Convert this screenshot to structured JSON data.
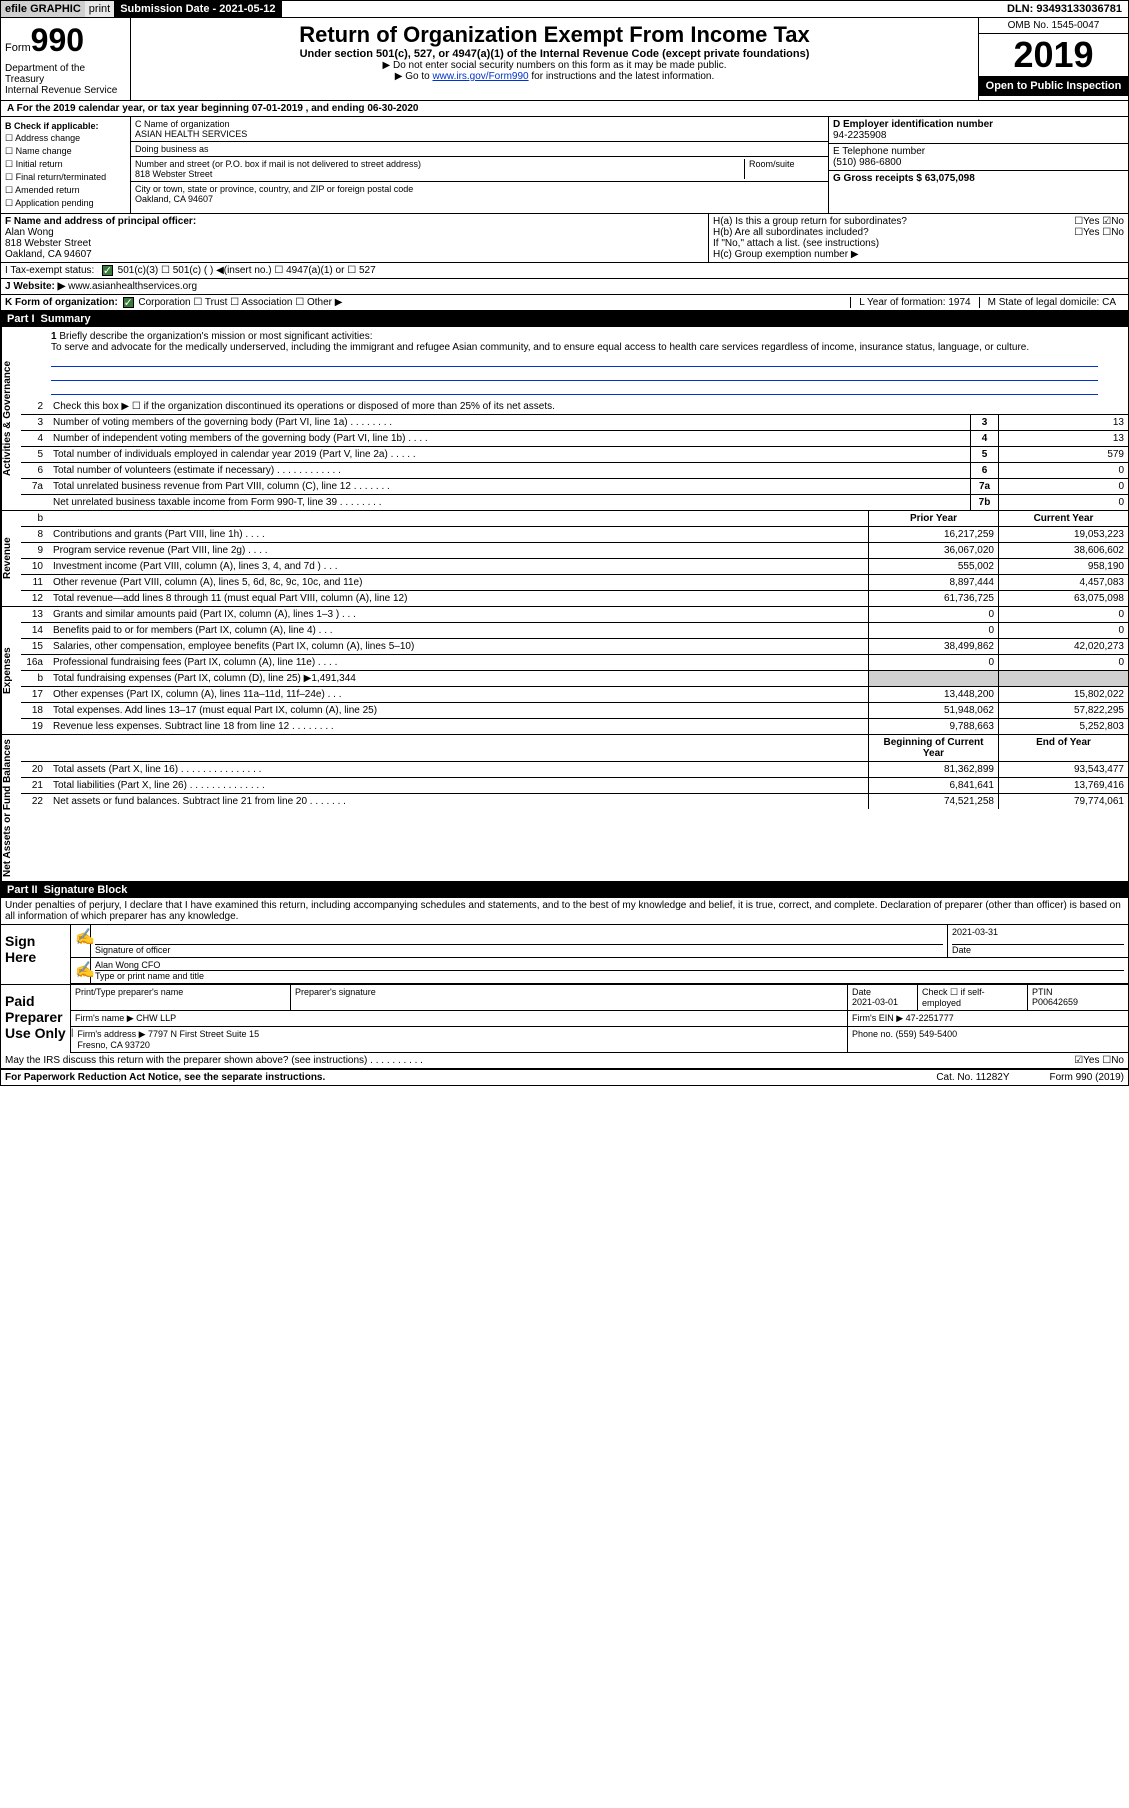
{
  "topbar": {
    "efile_bold": "efile GRAPHIC",
    "efile_print": "print",
    "submission_label": "Submission Date - 2021-05-12",
    "dln": "DLN: 93493133036781"
  },
  "header": {
    "form_word": "Form",
    "form_number": "990",
    "dept": "Department of the Treasury\nInternal Revenue Service",
    "main_title": "Return of Organization Exempt From Income Tax",
    "sub1": "Under section 501(c), 527, or 4947(a)(1) of the Internal Revenue Code (except private foundations)",
    "sub2": "▶ Do not enter social security numbers on this form as it may be made public.",
    "sub3_pre": "▶ Go to ",
    "sub3_link": "www.irs.gov/Form990",
    "sub3_post": " for instructions and the latest information.",
    "omb": "OMB No. 1545-0047",
    "year": "2019",
    "open": "Open to Public Inspection"
  },
  "line_a": "A For the 2019 calendar year, or tax year beginning 07-01-2019   , and ending 06-30-2020",
  "section_b": {
    "b_title": "B Check if applicable:",
    "b_items": [
      "☐ Address change",
      "☐ Name change",
      "☐ Initial return",
      "☐ Final return/terminated",
      "☐ Amended return",
      "☐ Application pending"
    ],
    "c_name_label": "C Name of organization",
    "c_name": "ASIAN HEALTH SERVICES",
    "dba_label": "Doing business as",
    "addr_label": "Number and street (or P.O. box if mail is not delivered to street address)",
    "room_label": "Room/suite",
    "addr": "818 Webster Street",
    "city_label": "City or town, state or province, country, and ZIP or foreign postal code",
    "city": "Oakland, CA  94607",
    "d_label": "D Employer identification number",
    "d_val": "94-2235908",
    "e_label": "E Telephone number",
    "e_val": "(510) 986-6800",
    "g_label": "G Gross receipts $ 63,075,098"
  },
  "section_fh": {
    "f_label": "F Name and address of principal officer:",
    "f_name": "Alan Wong",
    "f_addr1": "818 Webster Street",
    "f_addr2": "Oakland, CA  94607",
    "ha": "H(a)  Is this a group return for subordinates?",
    "ha_yn": "☐Yes ☑No",
    "hb": "H(b)  Are all subordinates included?",
    "hb_yn": "☐Yes ☐No",
    "hb_note": "If \"No,\" attach a list. (see instructions)",
    "hc": "H(c)  Group exemption number ▶"
  },
  "row_i": {
    "label": "I Tax-exempt status:",
    "opts": "501(c)(3)   ☐ 501(c) (  ) ◀(insert no.)   ☐ 4947(a)(1) or   ☐ 527"
  },
  "row_j": {
    "label": "J Website: ▶",
    "val": "www.asianhealthservices.org"
  },
  "row_k": {
    "label": "K Form of organization:",
    "opts": "Corporation  ☐ Trust  ☐ Association  ☐ Other ▶",
    "l": "L Year of formation: 1974",
    "m": "M State of legal domicile: CA"
  },
  "part1": {
    "label": "Part I",
    "title": "Summary"
  },
  "mission": {
    "num": "1",
    "label": "Briefly describe the organization's mission or most significant activities:",
    "text": "To serve and advocate for the medically underserved, including the immigrant and refugee Asian community, and to ensure equal access to health care services regardless of income, insurance status, language, or culture."
  },
  "line2": "Check this box ▶ ☐ if the organization discontinued its operations or disposed of more than 25% of its net assets.",
  "gov_lines": [
    {
      "n": "3",
      "d": "Number of voting members of the governing body (Part VI, line 1a)  .   .   .   .   .   .   .   .",
      "b": "3",
      "v": "13"
    },
    {
      "n": "4",
      "d": "Number of independent voting members of the governing body (Part VI, line 1b)  .   .   .   .",
      "b": "4",
      "v": "13"
    },
    {
      "n": "5",
      "d": "Total number of individuals employed in calendar year 2019 (Part V, line 2a)  .   .   .   .   .",
      "b": "5",
      "v": "579"
    },
    {
      "n": "6",
      "d": "Total number of volunteers (estimate if necessary)  .   .   .   .   .   .   .   .   .   .   .   .",
      "b": "6",
      "v": "0"
    },
    {
      "n": "7a",
      "d": "Total unrelated business revenue from Part VIII, column (C), line 12  .   .   .   .   .   .   .",
      "b": "7a",
      "v": "0"
    },
    {
      "n": "",
      "d": "Net unrelated business taxable income from Form 990-T, line 39  .   .   .   .   .   .   .   .",
      "b": "7b",
      "v": "0"
    }
  ],
  "rev_head": {
    "py": "Prior Year",
    "cy": "Current Year"
  },
  "rev_lines": [
    {
      "n": "8",
      "d": "Contributions and grants (Part VIII, line 1h)  .   .   .   .",
      "py": "16,217,259",
      "cy": "19,053,223"
    },
    {
      "n": "9",
      "d": "Program service revenue (Part VIII, line 2g)  .   .   .   .",
      "py": "36,067,020",
      "cy": "38,606,602"
    },
    {
      "n": "10",
      "d": "Investment income (Part VIII, column (A), lines 3, 4, and 7d )  .   .   .",
      "py": "555,002",
      "cy": "958,190"
    },
    {
      "n": "11",
      "d": "Other revenue (Part VIII, column (A), lines 5, 6d, 8c, 9c, 10c, and 11e)",
      "py": "8,897,444",
      "cy": "4,457,083"
    },
    {
      "n": "12",
      "d": "Total revenue—add lines 8 through 11 (must equal Part VIII, column (A), line 12)",
      "py": "61,736,725",
      "cy": "63,075,098"
    }
  ],
  "exp_lines": [
    {
      "n": "13",
      "d": "Grants and similar amounts paid (Part IX, column (A), lines 1–3 )  .   .   .",
      "py": "0",
      "cy": "0"
    },
    {
      "n": "14",
      "d": "Benefits paid to or for members (Part IX, column (A), line 4)  .   .   .",
      "py": "0",
      "cy": "0"
    },
    {
      "n": "15",
      "d": "Salaries, other compensation, employee benefits (Part IX, column (A), lines 5–10)",
      "py": "38,499,862",
      "cy": "42,020,273"
    },
    {
      "n": "16a",
      "d": "Professional fundraising fees (Part IX, column (A), line 11e)  .   .   .   .",
      "py": "0",
      "cy": "0"
    },
    {
      "n": "b",
      "d": "Total fundraising expenses (Part IX, column (D), line 25) ▶1,491,344",
      "py": "",
      "cy": "",
      "shade": true
    },
    {
      "n": "17",
      "d": "Other expenses (Part IX, column (A), lines 11a–11d, 11f–24e)  .   .   .",
      "py": "13,448,200",
      "cy": "15,802,022"
    },
    {
      "n": "18",
      "d": "Total expenses. Add lines 13–17 (must equal Part IX, column (A), line 25)",
      "py": "51,948,062",
      "cy": "57,822,295"
    },
    {
      "n": "19",
      "d": "Revenue less expenses. Subtract line 18 from line 12  .   .   .   .   .   .   .   .",
      "py": "9,788,663",
      "cy": "5,252,803"
    }
  ],
  "na_head": {
    "py": "Beginning of Current Year",
    "cy": "End of Year"
  },
  "na_lines": [
    {
      "n": "20",
      "d": "Total assets (Part X, line 16)  .   .   .   .   .   .   .   .   .   .   .   .   .   .   .",
      "py": "81,362,899",
      "cy": "93,543,477"
    },
    {
      "n": "21",
      "d": "Total liabilities (Part X, line 26)  .   .   .   .   .   .   .   .   .   .   .   .   .   .",
      "py": "6,841,641",
      "cy": "13,769,416"
    },
    {
      "n": "22",
      "d": "Net assets or fund balances. Subtract line 21 from line 20  .   .   .   .   .   .   .",
      "py": "74,521,258",
      "cy": "79,774,061"
    }
  ],
  "part2": {
    "label": "Part II",
    "title": "Signature Block"
  },
  "perjury": "Under penalties of perjury, I declare that I have examined this return, including accompanying schedules and statements, and to the best of my knowledge and belief, it is true, correct, and complete. Declaration of preparer (other than officer) is based on all information of which preparer has any knowledge.",
  "sign": {
    "left": "Sign Here",
    "sig_date": "2021-03-31",
    "sig_of": "Signature of officer",
    "sig_date_lbl": "Date",
    "name_title": "Alan Wong CFO",
    "name_title_lbl": "Type or print name and title"
  },
  "paid": {
    "left": "Paid Preparer Use Only",
    "pt_name": "Print/Type preparer's name",
    "pt_sig": "Preparer's signature",
    "pt_date_lbl": "Date",
    "pt_date": "2021-03-01",
    "check_lbl": "Check ☐ if self-employed",
    "ptin_lbl": "PTIN",
    "ptin": "P00642659",
    "firm_name_lbl": "Firm's name   ▶",
    "firm_name": "CHW LLP",
    "firm_ein_lbl": "Firm's EIN ▶",
    "firm_ein": "47-2251777",
    "firm_addr_lbl": "Firm's address ▶",
    "firm_addr": "7797 N First Street Suite 15\nFresno, CA  93720",
    "phone_lbl": "Phone no.",
    "phone": "(559) 549-5400"
  },
  "discuss": {
    "q": "May the IRS discuss this return with the preparer shown above? (see instructions)  .   .   .   .   .   .   .   .   .   .",
    "yn": "☑Yes ☐No"
  },
  "footer": {
    "notice": "For Paperwork Reduction Act Notice, see the separate instructions.",
    "cat": "Cat. No. 11282Y",
    "form": "Form 990 (2019)"
  },
  "vtabs": {
    "gov": "Activities & Governance",
    "rev": "Revenue",
    "exp": "Expenses",
    "na": "Net Assets or Fund Balances"
  }
}
